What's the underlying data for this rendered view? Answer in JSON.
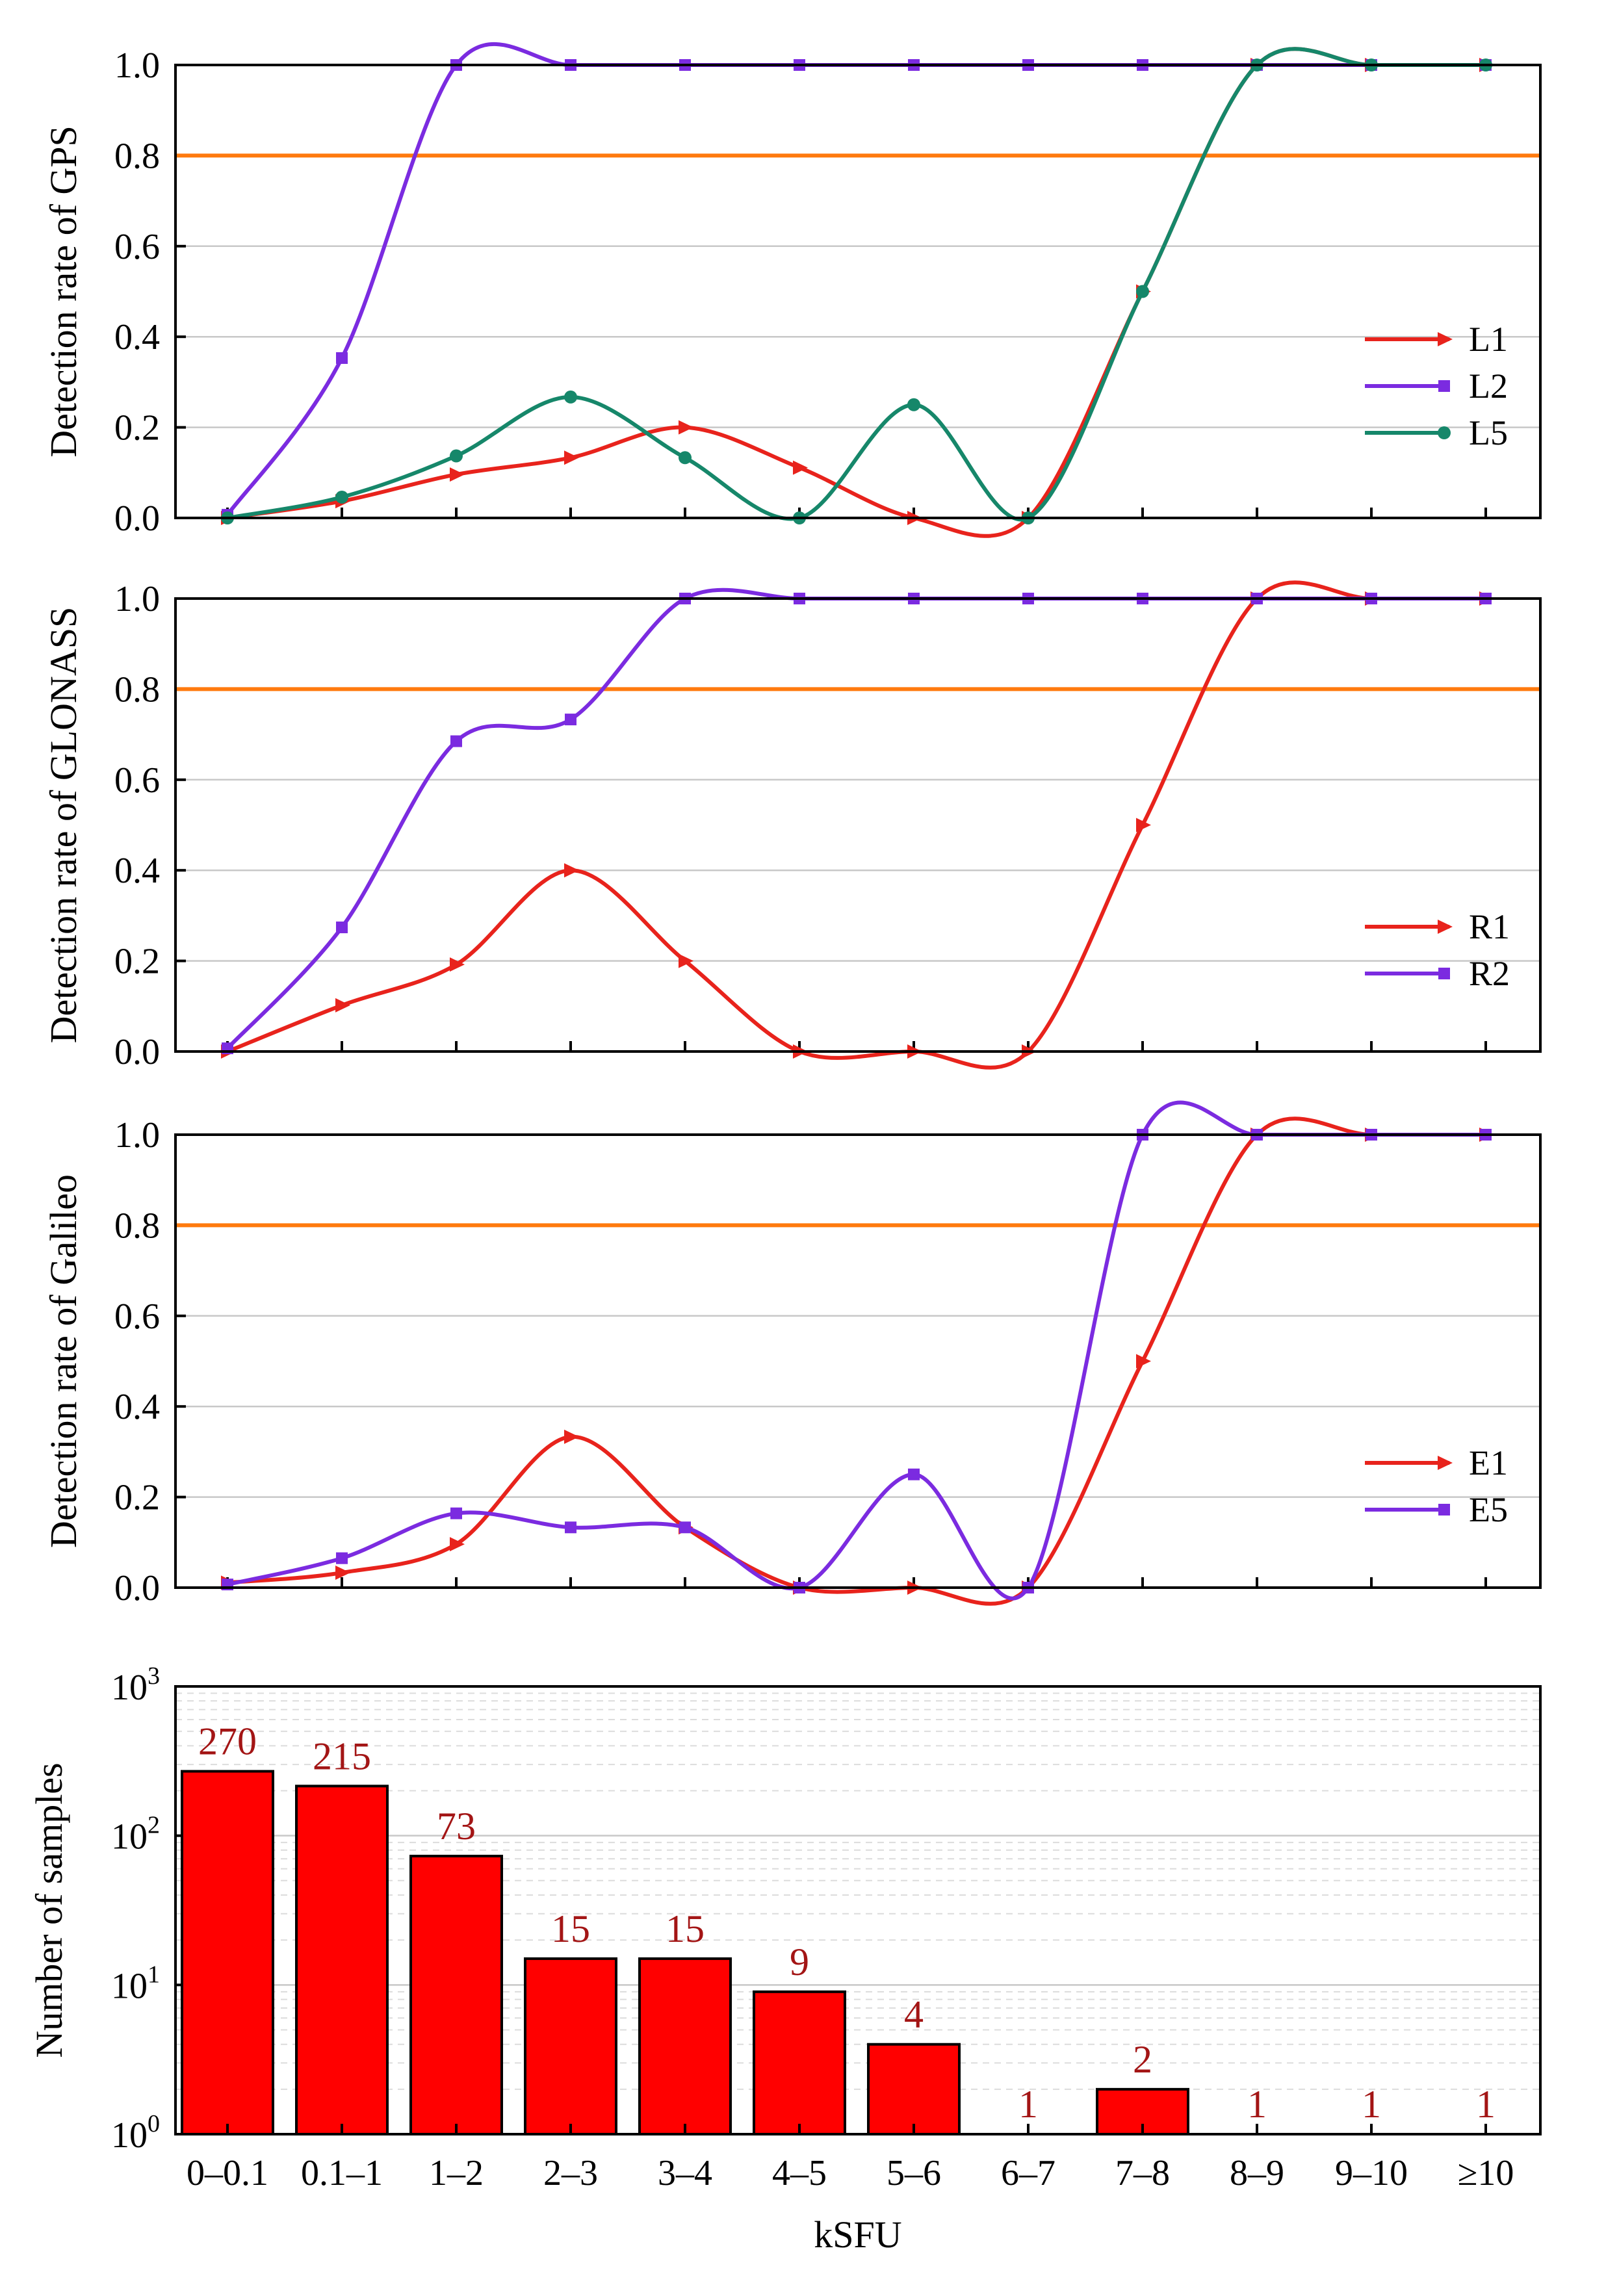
{
  "chart_data": [
    {
      "type": "line",
      "ylabel": "Detection rate of GPS",
      "ylim": [
        0,
        1
      ],
      "yticks": [
        "0.0",
        "0.2",
        "0.4",
        "0.6",
        "0.8",
        "1.0"
      ],
      "grid": true,
      "threshold": 0.8,
      "legend_position": "right-middle",
      "x_count": 12,
      "series": [
        {
          "name": "L1",
          "marker": "triangle",
          "color": "#e8231c",
          "values": [
            0,
            0.037,
            0.096,
            0.133,
            0.2,
            0.111,
            0,
            0,
            0.5,
            1,
            1,
            1
          ]
        },
        {
          "name": "L2",
          "marker": "square",
          "color": "#7b2be0",
          "values": [
            0.007,
            0.353,
            1,
            1,
            1,
            1,
            1,
            1,
            1,
            1,
            1,
            1
          ]
        },
        {
          "name": "L5",
          "marker": "circle",
          "color": "#16876a",
          "values": [
            0,
            0.046,
            0.137,
            0.267,
            0.133,
            0,
            0.25,
            0,
            0.5,
            1,
            1,
            1
          ]
        }
      ]
    },
    {
      "type": "line",
      "ylabel": "Detection rate of GLONASS",
      "ylim": [
        0,
        1
      ],
      "yticks": [
        "0.0",
        "0.2",
        "0.4",
        "0.6",
        "0.8",
        "1.0"
      ],
      "grid": true,
      "threshold": 0.8,
      "legend_position": "right-middle",
      "x_count": 12,
      "series": [
        {
          "name": "R1",
          "marker": "triangle",
          "color": "#e8231c",
          "values": [
            0,
            0.102,
            0.192,
            0.4,
            0.2,
            0,
            0,
            0,
            0.5,
            1,
            1,
            1
          ]
        },
        {
          "name": "R2",
          "marker": "square",
          "color": "#7b2be0",
          "values": [
            0.007,
            0.274,
            0.685,
            0.733,
            1,
            1,
            1,
            1,
            1,
            1,
            1,
            1
          ]
        }
      ]
    },
    {
      "type": "line",
      "ylabel": "Detection rate of Galileo",
      "ylim": [
        0,
        1
      ],
      "yticks": [
        "0.0",
        "0.2",
        "0.4",
        "0.6",
        "0.8",
        "1.0"
      ],
      "grid": true,
      "threshold": 0.8,
      "legend_position": "right-middle",
      "x_count": 12,
      "series": [
        {
          "name": "E1",
          "marker": "triangle",
          "color": "#e8231c",
          "values": [
            0.011,
            0.033,
            0.096,
            0.333,
            0.133,
            0,
            0,
            0,
            0.5,
            1,
            1,
            1
          ]
        },
        {
          "name": "E5",
          "marker": "square",
          "color": "#7b2be0",
          "values": [
            0.007,
            0.065,
            0.164,
            0.133,
            0.133,
            0,
            0.25,
            0,
            1,
            1,
            1,
            1
          ]
        }
      ]
    },
    {
      "type": "bar",
      "ylabel": "Number of samples",
      "xlabel": "kSFU",
      "yscale": "log",
      "ylim": [
        1,
        1000
      ],
      "ytick_labels": [
        {
          "base": "10",
          "exp": "0"
        },
        {
          "base": "10",
          "exp": "1"
        },
        {
          "base": "10",
          "exp": "2"
        },
        {
          "base": "10",
          "exp": "3"
        }
      ],
      "grid": true,
      "categories": [
        "0–0.1",
        "0.1–1",
        "1–2",
        "2–3",
        "3–4",
        "4–5",
        "5–6",
        "6–7",
        "7–8",
        "8–9",
        "9–10",
        "≥10"
      ],
      "values": [
        270,
        215,
        73,
        15,
        15,
        9,
        4,
        1,
        2,
        1,
        1,
        1
      ],
      "data_labels": [
        "270",
        "215",
        "73",
        "15",
        "15",
        "9",
        "4",
        "1",
        "2",
        "1",
        "1",
        "1"
      ],
      "bar_color": "#ff0000",
      "label_color": "#a31515"
    }
  ]
}
